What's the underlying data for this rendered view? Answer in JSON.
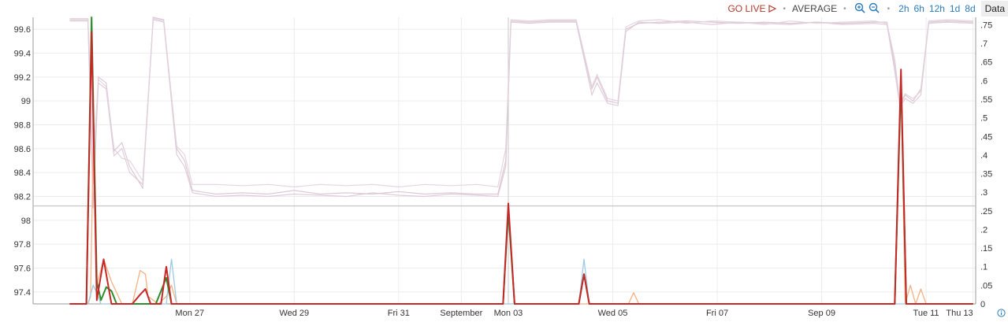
{
  "toolbar": {
    "go_live": "GO LIVE",
    "aggregate": "AVERAGE",
    "zoom_in_icon": "zoom-in-icon",
    "zoom_out_icon": "zoom-out-icon",
    "ranges": [
      "2h",
      "6h",
      "12h",
      "1d",
      "8d"
    ],
    "data_button": "Data"
  },
  "colors": {
    "live": "#b03a2e",
    "accent": "#2a7ab8",
    "bg_series": "#d9c3d2",
    "series_red": "#c62828",
    "series_green": "#2e8b2e",
    "series_orange": "#f4b183",
    "series_blue": "#9ec9e2",
    "threshold": "#bbbbbb",
    "grid": "#ececec"
  },
  "chart_data": {
    "type": "line",
    "x_ticks": [
      "Mon 27",
      "Wed 29",
      "Fri 31",
      "September",
      "Mon 03",
      "Wed 05",
      "Fri 07",
      "Sep 09",
      "Tue 11",
      "Thu 13"
    ],
    "left_axis": {
      "ticks": [
        "99.6",
        "99.4",
        "99.2",
        "99",
        "98.8",
        "98.6",
        "98.4",
        "98.2",
        "98",
        "97.8",
        "97.6",
        "97.4"
      ],
      "ylim": [
        97.3,
        99.7
      ]
    },
    "right_axis": {
      "ticks": [
        ".75",
        ".7",
        ".65",
        ".6",
        ".55",
        ".5",
        ".45",
        ".4",
        ".35",
        ".3",
        ".25",
        ".2",
        ".15",
        ".1",
        ".05",
        "0"
      ],
      "ylim": [
        0,
        0.77
      ]
    },
    "threshold_left": 98.12,
    "grid": true,
    "x_range_days": [
      -3,
      15.05
    ],
    "availability_series": [
      {
        "color": "#d9c3d2",
        "values": [
          [
            -2.3,
            99.68
          ],
          [
            -1.95,
            99.68
          ],
          [
            -1.85,
            98.1
          ],
          [
            -1.75,
            99.2
          ],
          [
            -1.6,
            99.15
          ],
          [
            -1.45,
            98.58
          ],
          [
            -1.3,
            98.65
          ],
          [
            -1.15,
            98.45
          ],
          [
            -0.9,
            98.27
          ],
          [
            -0.7,
            99.7
          ],
          [
            -0.5,
            99.68
          ],
          [
            -0.25,
            98.6
          ],
          [
            -0.1,
            98.5
          ],
          [
            0.05,
            98.25
          ],
          [
            0.5,
            98.22
          ],
          [
            1,
            98.23
          ],
          [
            1.5,
            98.22
          ],
          [
            2,
            98.25
          ],
          [
            2.5,
            98.22
          ],
          [
            3,
            98.23
          ],
          [
            3.5,
            98.22
          ],
          [
            4,
            98.24
          ],
          [
            4.5,
            98.22
          ],
          [
            5,
            98.23
          ],
          [
            5.5,
            98.22
          ],
          [
            5.9,
            98.22
          ],
          [
            6.05,
            98.5
          ],
          [
            6.15,
            99.67
          ],
          [
            6.5,
            99.66
          ],
          [
            6.9,
            99.67
          ],
          [
            7.4,
            99.67
          ],
          [
            7.7,
            99.1
          ],
          [
            7.8,
            99.2
          ],
          [
            8,
            99.0
          ],
          [
            8.2,
            98.98
          ],
          [
            8.35,
            99.6
          ],
          [
            8.6,
            99.65
          ],
          [
            9,
            99.66
          ],
          [
            9.5,
            99.67
          ],
          [
            10,
            99.66
          ],
          [
            10.5,
            99.65
          ],
          [
            11,
            99.66
          ],
          [
            11.5,
            99.65
          ],
          [
            12,
            99.66
          ],
          [
            12.5,
            99.65
          ],
          [
            13.1,
            99.66
          ],
          [
            13.35,
            99.66
          ],
          [
            13.5,
            99.3
          ],
          [
            13.6,
            98.96
          ],
          [
            13.7,
            99.05
          ],
          [
            13.85,
            99.0
          ],
          [
            14,
            99.1
          ],
          [
            14.15,
            99.66
          ],
          [
            14.5,
            99.67
          ],
          [
            15,
            99.66
          ]
        ]
      },
      {
        "color": "#dcc8d6",
        "values": [
          [
            -2.3,
            99.67
          ],
          [
            -1.95,
            99.67
          ],
          [
            -1.85,
            98.3
          ],
          [
            -1.75,
            99.15
          ],
          [
            -1.6,
            99.1
          ],
          [
            -1.45,
            98.54
          ],
          [
            -1.3,
            98.6
          ],
          [
            -1.15,
            98.4
          ],
          [
            -0.9,
            98.3
          ],
          [
            -0.7,
            99.68
          ],
          [
            -0.5,
            99.66
          ],
          [
            -0.25,
            98.55
          ],
          [
            -0.1,
            98.45
          ],
          [
            0.05,
            98.23
          ],
          [
            0.5,
            98.2
          ],
          [
            1,
            98.21
          ],
          [
            1.5,
            98.2
          ],
          [
            2,
            98.22
          ],
          [
            2.5,
            98.21
          ],
          [
            3,
            98.2
          ],
          [
            3.5,
            98.23
          ],
          [
            4,
            98.21
          ],
          [
            4.5,
            98.2
          ],
          [
            5,
            98.22
          ],
          [
            5.5,
            98.21
          ],
          [
            5.9,
            98.2
          ],
          [
            6.05,
            98.45
          ],
          [
            6.15,
            99.66
          ],
          [
            6.5,
            99.65
          ],
          [
            6.9,
            99.66
          ],
          [
            7.4,
            99.66
          ],
          [
            7.7,
            99.05
          ],
          [
            7.8,
            99.15
          ],
          [
            8,
            98.98
          ],
          [
            8.2,
            98.96
          ],
          [
            8.35,
            99.58
          ],
          [
            8.6,
            99.66
          ],
          [
            9,
            99.65
          ],
          [
            9.5,
            99.66
          ],
          [
            10,
            99.64
          ],
          [
            10.5,
            99.66
          ],
          [
            11,
            99.65
          ],
          [
            11.5,
            99.64
          ],
          [
            12,
            99.66
          ],
          [
            12.5,
            99.64
          ],
          [
            13.1,
            99.65
          ],
          [
            13.35,
            99.64
          ],
          [
            13.5,
            99.25
          ],
          [
            13.6,
            98.95
          ],
          [
            13.7,
            99.02
          ],
          [
            13.85,
            98.98
          ],
          [
            14,
            99.05
          ],
          [
            14.15,
            99.65
          ],
          [
            14.5,
            99.66
          ],
          [
            15,
            99.65
          ]
        ]
      },
      {
        "color": "#e2d0dc",
        "values": [
          [
            -2.3,
            99.69
          ],
          [
            -1.95,
            99.69
          ],
          [
            -1.85,
            98.5
          ],
          [
            -1.75,
            99.18
          ],
          [
            -1.6,
            99.12
          ],
          [
            -1.45,
            98.6
          ],
          [
            -1.3,
            98.52
          ],
          [
            -1.15,
            98.5
          ],
          [
            -0.9,
            98.33
          ],
          [
            -0.7,
            99.69
          ],
          [
            -0.5,
            99.67
          ],
          [
            -0.25,
            98.62
          ],
          [
            -0.1,
            98.55
          ],
          [
            0.05,
            98.3
          ],
          [
            0.5,
            98.3
          ],
          [
            1,
            98.29
          ],
          [
            1.5,
            98.3
          ],
          [
            2,
            98.28
          ],
          [
            2.5,
            98.3
          ],
          [
            3,
            98.29
          ],
          [
            3.5,
            98.3
          ],
          [
            4,
            98.28
          ],
          [
            4.5,
            98.3
          ],
          [
            5,
            98.29
          ],
          [
            5.5,
            98.3
          ],
          [
            5.9,
            98.28
          ],
          [
            6.05,
            98.6
          ],
          [
            6.15,
            99.68
          ],
          [
            6.5,
            99.67
          ],
          [
            6.9,
            99.68
          ],
          [
            7.4,
            99.68
          ],
          [
            7.7,
            99.12
          ],
          [
            7.8,
            99.22
          ],
          [
            8,
            99.02
          ],
          [
            8.2,
            99.0
          ],
          [
            8.35,
            99.62
          ],
          [
            8.6,
            99.67
          ],
          [
            9,
            99.68
          ],
          [
            9.5,
            99.65
          ],
          [
            10,
            99.67
          ],
          [
            10.5,
            99.66
          ],
          [
            11,
            99.64
          ],
          [
            11.5,
            99.67
          ],
          [
            12,
            99.65
          ],
          [
            12.5,
            99.66
          ],
          [
            13.1,
            99.67
          ],
          [
            13.35,
            99.65
          ],
          [
            13.5,
            99.35
          ],
          [
            13.6,
            98.98
          ],
          [
            13.7,
            99.06
          ],
          [
            13.85,
            99.02
          ],
          [
            14,
            99.08
          ],
          [
            14.15,
            99.67
          ],
          [
            14.5,
            99.68
          ],
          [
            15,
            99.67
          ]
        ]
      }
    ],
    "error_series": [
      {
        "color": "#f4b183",
        "values": [
          [
            -2.3,
            0
          ],
          [
            -1.95,
            0
          ],
          [
            -1.9,
            0.02
          ],
          [
            -1.85,
            0.42
          ],
          [
            -1.78,
            0.05
          ],
          [
            -1.65,
            0.12
          ],
          [
            -1.5,
            0.06
          ],
          [
            -1.3,
            0
          ],
          [
            -1.1,
            0
          ],
          [
            -0.95,
            0.09
          ],
          [
            -0.85,
            0.08
          ],
          [
            -0.8,
            0.02
          ],
          [
            -0.6,
            0
          ],
          [
            -0.45,
            0.02
          ],
          [
            -0.35,
            0.05
          ],
          [
            -0.25,
            0
          ],
          [
            6.0,
            0
          ],
          [
            6.1,
            0.25
          ],
          [
            6.22,
            0
          ],
          [
            8.4,
            0
          ],
          [
            8.5,
            0.03
          ],
          [
            8.6,
            0
          ],
          [
            13.5,
            0
          ],
          [
            13.62,
            0.6
          ],
          [
            13.7,
            0
          ],
          [
            13.8,
            0.05
          ],
          [
            13.9,
            0
          ],
          [
            14,
            0.04
          ],
          [
            14.1,
            0
          ],
          [
            15,
            0
          ]
        ]
      },
      {
        "color": "#9ec9e2",
        "values": [
          [
            -2.3,
            0
          ],
          [
            -1.95,
            0
          ],
          [
            -1.85,
            0.05
          ],
          [
            -1.78,
            0.03
          ],
          [
            -1.7,
            0
          ],
          [
            -0.45,
            0
          ],
          [
            -0.35,
            0.12
          ],
          [
            -0.25,
            0
          ],
          [
            7.45,
            0
          ],
          [
            7.55,
            0.12
          ],
          [
            7.65,
            0
          ],
          [
            15,
            0
          ]
        ]
      },
      {
        "color": "#2e8b2e",
        "values": [
          [
            -2.3,
            0
          ],
          [
            -1.98,
            0
          ],
          [
            -1.88,
            0.77
          ],
          [
            -1.78,
            0.06
          ],
          [
            -1.7,
            0.01
          ],
          [
            -1.6,
            0.045
          ],
          [
            -1.5,
            0.035
          ],
          [
            -1.4,
            0
          ],
          [
            -1.15,
            0
          ],
          [
            -1.05,
            0
          ],
          [
            -0.9,
            0
          ],
          [
            -0.8,
            0
          ],
          [
            -0.65,
            0
          ],
          [
            -0.45,
            0.07
          ],
          [
            -0.35,
            0
          ],
          [
            6.0,
            0
          ],
          [
            6.1,
            0.25
          ],
          [
            6.22,
            0
          ],
          [
            7.45,
            0
          ],
          [
            7.55,
            0.08
          ],
          [
            7.65,
            0
          ],
          [
            13.5,
            0
          ],
          [
            13.62,
            0.6
          ],
          [
            13.72,
            0
          ],
          [
            15,
            0
          ]
        ]
      },
      {
        "color": "#c62828",
        "values": [
          [
            -2.3,
            0
          ],
          [
            -1.98,
            0
          ],
          [
            -1.88,
            0.73
          ],
          [
            -1.78,
            0.01
          ],
          [
            -1.65,
            0.12
          ],
          [
            -1.5,
            0
          ],
          [
            -1.3,
            0
          ],
          [
            -1.1,
            0
          ],
          [
            -0.95,
            0.025
          ],
          [
            -0.85,
            0.04
          ],
          [
            -0.75,
            0
          ],
          [
            -0.55,
            0
          ],
          [
            -0.45,
            0.1
          ],
          [
            -0.35,
            0
          ],
          [
            6.0,
            0
          ],
          [
            6.1,
            0.27
          ],
          [
            6.22,
            0
          ],
          [
            7.45,
            0
          ],
          [
            7.55,
            0.08
          ],
          [
            7.65,
            0
          ],
          [
            13.5,
            0
          ],
          [
            13.62,
            0.63
          ],
          [
            13.72,
            0
          ],
          [
            15,
            0
          ]
        ]
      }
    ]
  },
  "info_icon": "info-icon"
}
